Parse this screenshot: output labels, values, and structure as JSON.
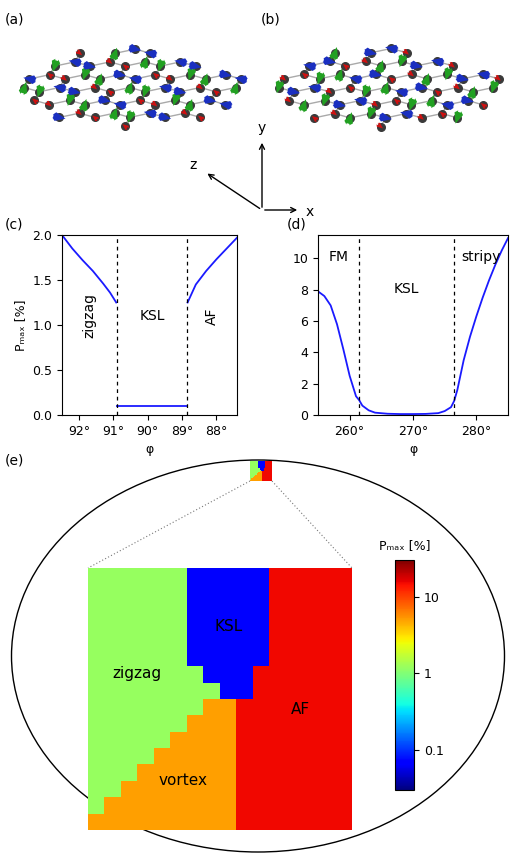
{
  "diagrams": {
    "panels": [
      "(a)",
      "(b)"
    ],
    "axes_labels": [
      "x",
      "y",
      "z"
    ]
  },
  "chart_data": [
    {
      "type": "line",
      "panel": "(c)",
      "x_label": "φ",
      "y_label": "Pₘₐₓ [%]",
      "color": "#1a1aff",
      "x": [
        92.5,
        92.2,
        91.9,
        91.6,
        91.3,
        91.1,
        90.92,
        90.91,
        90.9,
        90.5,
        90.0,
        89.5,
        89.0,
        88.86,
        88.85,
        88.84,
        88.6,
        88.3,
        88.0,
        87.7,
        87.4
      ],
      "values": [
        2.0,
        1.85,
        1.72,
        1.6,
        1.46,
        1.36,
        1.25,
        null,
        0.1,
        0.1,
        0.1,
        0.1,
        0.1,
        0.1,
        null,
        1.25,
        1.45,
        1.6,
        1.73,
        1.85,
        1.97
      ],
      "xlim": [
        92.5,
        87.4
      ],
      "xticks": [
        {
          "value": 92,
          "label": "92°"
        },
        {
          "value": 91,
          "label": "91°"
        },
        {
          "value": 90,
          "label": "90°"
        },
        {
          "value": 89,
          "label": "89°"
        },
        {
          "value": 88,
          "label": "88°"
        }
      ],
      "ylim": [
        0,
        2.0
      ],
      "yticks": [
        {
          "value": 0,
          "label": "0.0"
        },
        {
          "value": 0.5,
          "label": "0.5"
        },
        {
          "value": 1,
          "label": "1.0"
        },
        {
          "value": 1.5,
          "label": "1.5"
        },
        {
          "value": 2,
          "label": "2.0"
        }
      ],
      "boundaries": [
        90.9,
        88.85
      ],
      "regions": [
        "zigzag",
        "KSL",
        "AF"
      ]
    },
    {
      "type": "line",
      "panel": "(d)",
      "x_label": "φ",
      "color": "#1a1aff",
      "x": [
        255,
        256,
        257,
        258,
        259,
        260,
        261,
        261.5,
        262,
        263,
        264,
        266,
        268,
        270,
        272,
        274,
        275,
        276,
        276.5,
        277,
        278,
        279,
        280,
        281,
        282,
        283,
        284,
        285
      ],
      "values": [
        7.9,
        7.6,
        7.0,
        5.8,
        4.2,
        2.5,
        1.2,
        0.95,
        0.6,
        0.3,
        0.15,
        0.08,
        0.06,
        0.06,
        0.07,
        0.12,
        0.25,
        0.5,
        0.9,
        1.6,
        3.5,
        5.0,
        6.3,
        7.5,
        8.6,
        9.6,
        10.5,
        11.3
      ],
      "xlim": [
        255,
        285
      ],
      "xticks": [
        {
          "value": 260,
          "label": "260°"
        },
        {
          "value": 270,
          "label": "270°"
        },
        {
          "value": 280,
          "label": "280°"
        }
      ],
      "ylim": [
        0,
        11.5
      ],
      "yticks": [
        0,
        2,
        4,
        6,
        8,
        10
      ],
      "boundaries": [
        261.5,
        276.5
      ],
      "regions": [
        "FM",
        "KSL",
        "stripy"
      ]
    },
    {
      "type": "heatmap",
      "panel": "(e)",
      "tick_labels": false,
      "cells": [
        [
          1.2,
          1.2,
          1.2,
          1.2,
          1.2,
          1.2,
          0.07,
          0.07,
          0.07,
          0.07,
          0.07,
          15,
          15,
          15,
          15,
          15
        ],
        [
          1.2,
          1.2,
          1.2,
          1.2,
          1.2,
          1.2,
          0.07,
          0.07,
          0.07,
          0.07,
          0.07,
          15,
          15,
          15,
          15,
          15
        ],
        [
          1.2,
          1.2,
          1.2,
          1.2,
          1.2,
          1.2,
          0.07,
          0.07,
          0.07,
          0.07,
          0.07,
          15,
          15,
          15,
          15,
          15
        ],
        [
          1.2,
          1.2,
          1.2,
          1.2,
          1.2,
          1.2,
          0.07,
          0.07,
          0.07,
          0.07,
          0.07,
          15,
          15,
          15,
          15,
          15
        ],
        [
          1.2,
          1.2,
          1.2,
          1.2,
          1.2,
          1.2,
          0.07,
          0.07,
          0.07,
          0.07,
          0.07,
          15,
          15,
          15,
          15,
          15
        ],
        [
          1.2,
          1.2,
          1.2,
          1.2,
          1.2,
          1.2,
          0.07,
          0.07,
          0.07,
          0.07,
          0.07,
          15,
          15,
          15,
          15,
          15
        ],
        [
          1.2,
          1.2,
          1.2,
          1.2,
          1.2,
          1.2,
          1.2,
          0.07,
          0.07,
          0.07,
          15,
          15,
          15,
          15,
          15,
          15
        ],
        [
          1.2,
          1.2,
          1.2,
          1.2,
          1.2,
          1.2,
          1.2,
          1.2,
          0.07,
          0.07,
          15,
          15,
          15,
          15,
          15,
          15
        ],
        [
          1.2,
          1.2,
          1.2,
          1.2,
          1.2,
          1.2,
          1.2,
          5,
          5,
          15,
          15,
          15,
          15,
          15,
          15,
          15
        ],
        [
          1.2,
          1.2,
          1.2,
          1.2,
          1.2,
          1.2,
          5,
          5,
          5,
          15,
          15,
          15,
          15,
          15,
          15,
          15
        ],
        [
          1.2,
          1.2,
          1.2,
          1.2,
          1.2,
          5,
          5,
          5,
          5,
          15,
          15,
          15,
          15,
          15,
          15,
          15
        ],
        [
          1.2,
          1.2,
          1.2,
          1.2,
          5,
          5,
          5,
          5,
          5,
          15,
          15,
          15,
          15,
          15,
          15,
          15
        ],
        [
          1.2,
          1.2,
          1.2,
          5,
          5,
          5,
          5,
          5,
          5,
          15,
          15,
          15,
          15,
          15,
          15,
          15
        ],
        [
          1.2,
          1.2,
          5,
          5,
          5,
          5,
          5,
          5,
          5,
          15,
          15,
          15,
          15,
          15,
          15,
          15
        ],
        [
          1.2,
          5,
          5,
          5,
          5,
          5,
          5,
          5,
          5,
          15,
          15,
          15,
          15,
          15,
          15,
          15
        ],
        [
          5,
          5,
          5,
          5,
          5,
          5,
          5,
          5,
          5,
          15,
          15,
          15,
          15,
          15,
          15,
          15
        ]
      ],
      "regions": [
        {
          "label": "zigzag",
          "value": 1.2
        },
        {
          "label": "KSL",
          "value": 0.07
        },
        {
          "label": "AF",
          "value": 15
        },
        {
          "label": "vortex",
          "value": 5
        }
      ],
      "colorbar": {
        "label": "Pₘₐₓ [%]",
        "lim": [
          0.03,
          30
        ],
        "ticks": [
          0.1,
          1,
          10
        ]
      }
    }
  ]
}
